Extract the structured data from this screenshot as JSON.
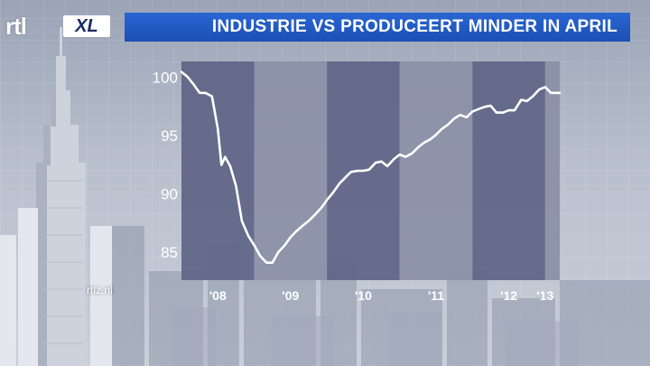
{
  "logo": {
    "rtl": "rtl",
    "xl": "XL"
  },
  "title": "INDUSTRIE VS PRODUCEERT MINDER IN APRIL",
  "site_label": "rtlz.nl",
  "colors": {
    "title_bar": "#1f58c4",
    "band_dark": "#5e6486",
    "band_light": "#8a8fa6",
    "line": "#ffffff"
  },
  "chart_data": {
    "type": "line",
    "title": "INDUSTRIE VS PRODUCEERT MINDER IN APRIL",
    "xlabel": "",
    "ylabel": "",
    "xlim": [
      2008.0,
      2013.2
    ],
    "ylim": [
      82.5,
      101.3
    ],
    "yticks": [
      100,
      95,
      90,
      85
    ],
    "ytick_labels": [
      "100",
      "95",
      "90",
      "85"
    ],
    "xticks": [
      2008.5,
      2009.5,
      2010.5,
      2011.5,
      2012.5,
      2013.0
    ],
    "xtick_labels": [
      "'08",
      "'09",
      "'10",
      "'11",
      "'12",
      "'13"
    ],
    "grid": false,
    "legend": "none",
    "bands": [
      {
        "from": 2008.0,
        "to": 2009.0,
        "shade": "dark"
      },
      {
        "from": 2009.0,
        "to": 2010.0,
        "shade": "light"
      },
      {
        "from": 2010.0,
        "to": 2011.0,
        "shade": "dark"
      },
      {
        "from": 2011.0,
        "to": 2012.0,
        "shade": "light"
      },
      {
        "from": 2012.0,
        "to": 2013.0,
        "shade": "dark"
      },
      {
        "from": 2013.0,
        "to": 2013.2,
        "shade": "light"
      }
    ],
    "series": [
      {
        "x": [
          2008.0,
          2008.08,
          2008.17,
          2008.25,
          2008.33,
          2008.42,
          2008.5,
          2008.55,
          2008.6,
          2008.67,
          2008.75,
          2008.83,
          2008.92,
          2009.0,
          2009.08,
          2009.17,
          2009.25,
          2009.33,
          2009.42,
          2009.5,
          2009.58,
          2009.67,
          2009.75,
          2009.83,
          2009.92,
          2010.0,
          2010.08,
          2010.17,
          2010.25,
          2010.33,
          2010.42,
          2010.5,
          2010.58,
          2010.67,
          2010.75,
          2010.83,
          2010.92,
          2011.0,
          2011.08,
          2011.17,
          2011.25,
          2011.33,
          2011.42,
          2011.5,
          2011.58,
          2011.67,
          2011.75,
          2011.83,
          2011.92,
          2012.0,
          2012.08,
          2012.17,
          2012.25,
          2012.33,
          2012.42,
          2012.5,
          2012.58,
          2012.67,
          2012.75,
          2012.83,
          2012.92,
          2013.0,
          2013.08,
          2013.17,
          2013.25
        ],
        "values": [
          100.4,
          100.0,
          99.3,
          98.6,
          98.6,
          98.3,
          95.5,
          92.4,
          93.1,
          92.3,
          90.6,
          87.6,
          86.3,
          85.5,
          84.6,
          84.0,
          84.0,
          84.9,
          85.5,
          86.2,
          86.7,
          87.2,
          87.6,
          88.1,
          88.7,
          89.4,
          90.0,
          90.8,
          91.3,
          91.8,
          91.9,
          91.9,
          92.0,
          92.6,
          92.7,
          92.3,
          92.9,
          93.3,
          93.1,
          93.4,
          93.9,
          94.3,
          94.6,
          95.0,
          95.5,
          95.9,
          96.4,
          96.7,
          96.5,
          97.0,
          97.2,
          97.4,
          97.5,
          96.9,
          96.9,
          97.1,
          97.1,
          98.0,
          97.9,
          98.3,
          98.9,
          99.1,
          98.6,
          98.6,
          98.6
        ]
      }
    ]
  }
}
